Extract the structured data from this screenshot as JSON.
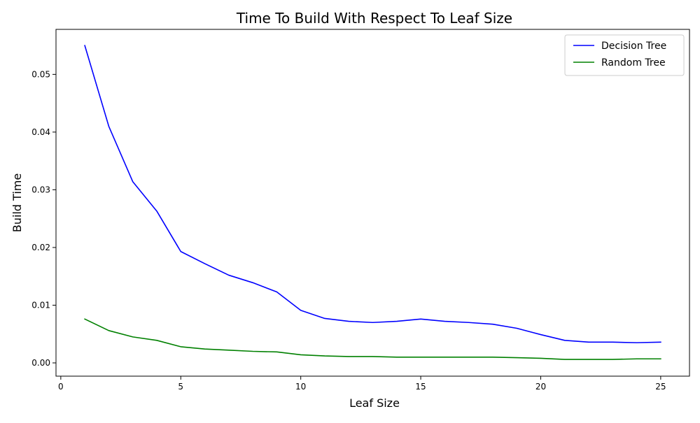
{
  "chart_data": {
    "type": "line",
    "title": "Time To Build With Respect To Leaf Size",
    "xlabel": "Leaf Size",
    "ylabel": "Build Time",
    "xlim": [
      -0.2,
      26.2
    ],
    "ylim": [
      -0.0023,
      0.0578
    ],
    "x_ticks": [
      0,
      5,
      10,
      15,
      20,
      25
    ],
    "x_tick_labels": [
      "0",
      "5",
      "10",
      "15",
      "20",
      "25"
    ],
    "y_ticks": [
      0.0,
      0.01,
      0.02,
      0.03,
      0.04,
      0.05
    ],
    "y_tick_labels": [
      "0.00",
      "0.01",
      "0.02",
      "0.03",
      "0.04",
      "0.05"
    ],
    "grid": false,
    "legend_position": "top-right",
    "x": [
      1,
      2,
      3,
      4,
      5,
      6,
      7,
      8,
      9,
      10,
      11,
      12,
      13,
      14,
      15,
      16,
      17,
      18,
      19,
      20,
      21,
      22,
      23,
      24,
      25
    ],
    "series": [
      {
        "name": "Decision Tree",
        "color": "#0000ff",
        "values": [
          0.055,
          0.041,
          0.0314,
          0.0263,
          0.0193,
          0.0172,
          0.0152,
          0.0139,
          0.0123,
          0.0091,
          0.0077,
          0.0072,
          0.007,
          0.0072,
          0.0076,
          0.0072,
          0.007,
          0.0067,
          0.006,
          0.0049,
          0.0039,
          0.0036,
          0.0036,
          0.0035,
          0.0036
        ]
      },
      {
        "name": "Random Tree",
        "color": "#008000",
        "values": [
          0.0076,
          0.0056,
          0.0045,
          0.0039,
          0.0028,
          0.0024,
          0.0022,
          0.002,
          0.0019,
          0.0014,
          0.0012,
          0.0011,
          0.0011,
          0.001,
          0.001,
          0.001,
          0.001,
          0.001,
          0.0009,
          0.0008,
          0.0006,
          0.0006,
          0.0006,
          0.0007,
          0.0007
        ]
      }
    ]
  }
}
